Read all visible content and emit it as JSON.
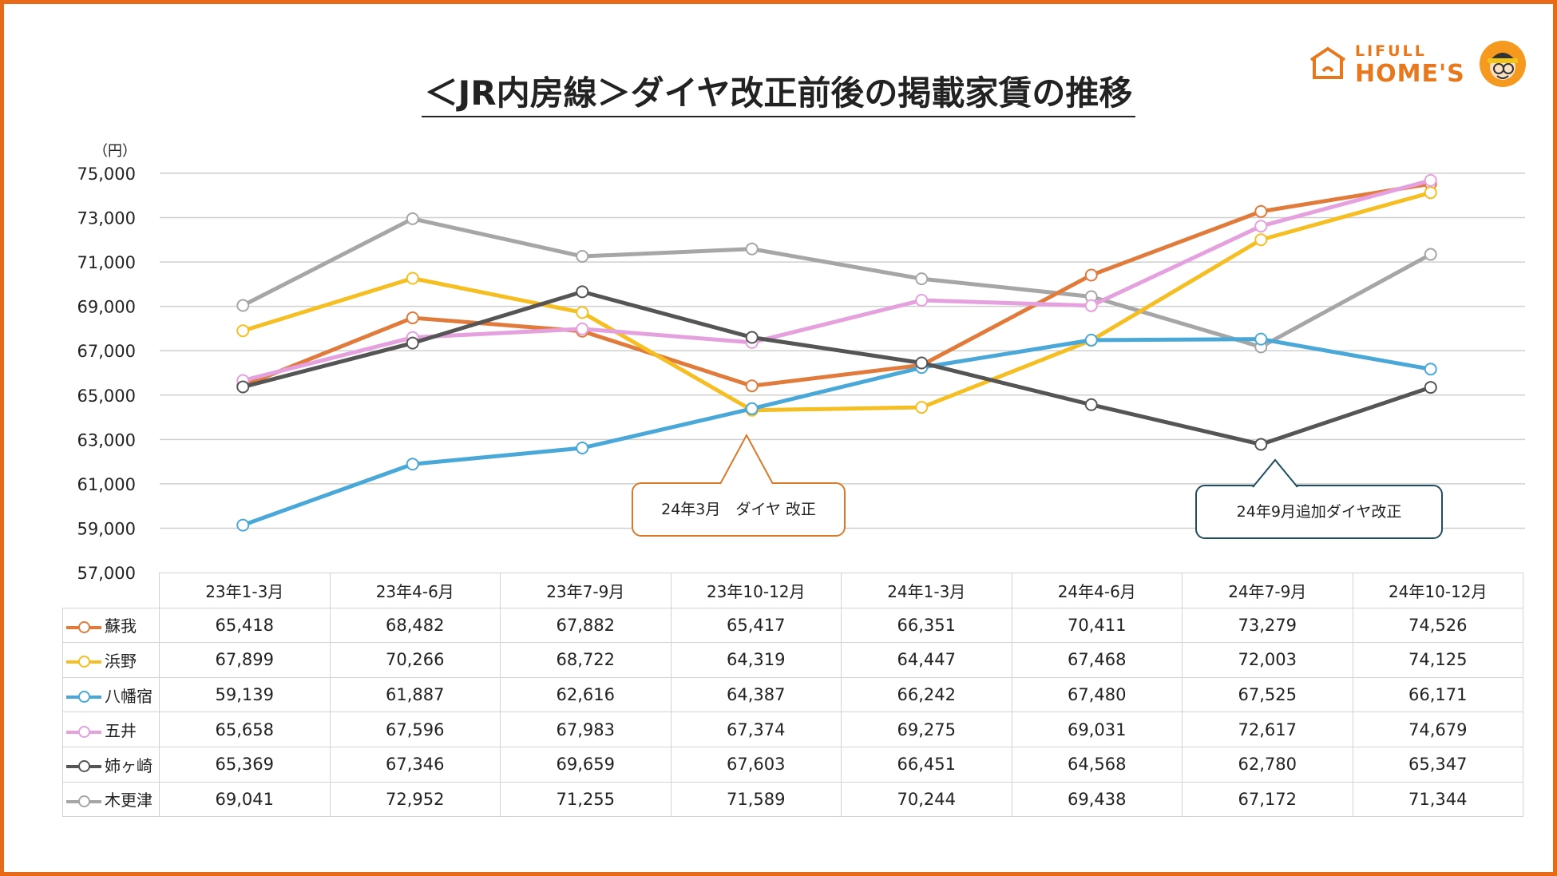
{
  "title": "＜JR内房線＞ダイヤ改正前後の掲載家賃の推移",
  "logo": {
    "line1": "LIFULL",
    "line2": "HOME'S"
  },
  "chart_data": {
    "type": "line",
    "ylabel": "（円）",
    "ylim": [
      57000,
      75000
    ],
    "yticks": [
      57000,
      59000,
      61000,
      63000,
      65000,
      67000,
      69000,
      71000,
      73000,
      75000
    ],
    "ytick_labels": [
      "57,000",
      "59,000",
      "61,000",
      "63,000",
      "65,000",
      "67,000",
      "69,000",
      "71,000",
      "73,000",
      "75,000"
    ],
    "grid": true,
    "categories": [
      "23年1-3月",
      "23年4-6月",
      "23年7-9月",
      "23年10-12月",
      "24年1-3月",
      "24年4-6月",
      "24年7-9月",
      "24年10-12月"
    ],
    "series": [
      {
        "name": "蘇我",
        "color": "#e07b3c",
        "values": [
          65418,
          68482,
          67882,
          65417,
          66351,
          70411,
          73279,
          74526
        ],
        "labels": [
          "65,418",
          "68,482",
          "67,882",
          "65,417",
          "66,351",
          "70,411",
          "73,279",
          "74,526"
        ]
      },
      {
        "name": "浜野",
        "color": "#f5be22",
        "values": [
          67899,
          70266,
          68722,
          64319,
          64447,
          67468,
          72003,
          74125
        ],
        "labels": [
          "67,899",
          "70,266",
          "68,722",
          "64,319",
          "64,447",
          "67,468",
          "72,003",
          "74,125"
        ]
      },
      {
        "name": "八幡宿",
        "color": "#4aa8d8",
        "values": [
          59139,
          61887,
          62616,
          64387,
          66242,
          67480,
          67525,
          66171
        ],
        "labels": [
          "59,139",
          "61,887",
          "62,616",
          "64,387",
          "66,242",
          "67,480",
          "67,525",
          "66,171"
        ]
      },
      {
        "name": "五井",
        "color": "#e5a0de",
        "values": [
          65658,
          67596,
          67983,
          67374,
          69275,
          69031,
          72617,
          74679
        ],
        "labels": [
          "65,658",
          "67,596",
          "67,983",
          "67,374",
          "69,275",
          "69,031",
          "72,617",
          "74,679"
        ]
      },
      {
        "name": "姉ヶ崎",
        "color": "#555555",
        "values": [
          65369,
          67346,
          69659,
          67603,
          66451,
          64568,
          62780,
          65347
        ],
        "labels": [
          "65,369",
          "67,346",
          "69,659",
          "67,603",
          "66,451",
          "64,568",
          "62,780",
          "65,347"
        ]
      },
      {
        "name": "木更津",
        "color": "#a6a6a6",
        "values": [
          69041,
          72952,
          71255,
          71589,
          70244,
          69438,
          67172,
          71344
        ],
        "labels": [
          "69,041",
          "72,952",
          "71,255",
          "71,589",
          "70,244",
          "69,438",
          "67,172",
          "71,344"
        ]
      }
    ],
    "draw_order": [
      5,
      0,
      1,
      2,
      3,
      4
    ],
    "annotations": [
      {
        "text": "24年3月　ダイヤ 改正",
        "color": "#d97a2b"
      },
      {
        "text": "24年9月追加ダイヤ改正",
        "color": "#1f4e5f"
      }
    ]
  }
}
